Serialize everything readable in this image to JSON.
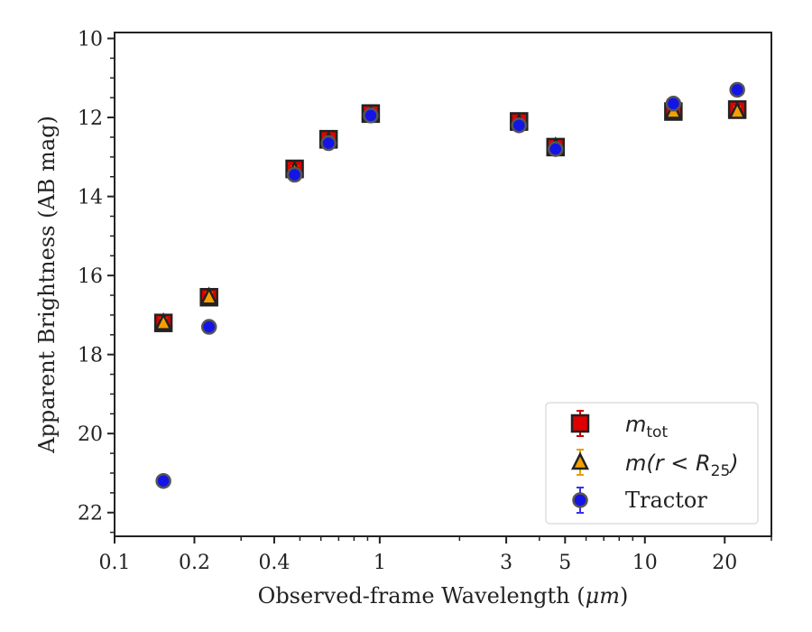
{
  "chart_data": {
    "type": "scatter",
    "xlabel_text": "Observed-frame Wavelength (",
    "xlabel_unit": "μm",
    "xlabel_close": ")",
    "ylabel": "Apparent Brightness (AB mag)",
    "x_scale": "log",
    "y_inverted": true,
    "xlim": [
      0.1,
      30
    ],
    "ylim": [
      22.6,
      9.85
    ],
    "x_ticks": [
      0.1,
      0.2,
      0.4,
      1,
      3,
      5,
      10,
      20
    ],
    "x_tick_labels": [
      "0.1",
      "0.2",
      "0.4",
      "1",
      "3",
      "5",
      "10",
      "20"
    ],
    "y_ticks": [
      10,
      12,
      14,
      16,
      18,
      20,
      22
    ],
    "y_tick_labels": [
      "10",
      "12",
      "14",
      "16",
      "18",
      "20",
      "22"
    ],
    "grid": false,
    "legend_position": "lower-right",
    "series": [
      {
        "name_main": "m",
        "name_sub": "tot",
        "name_tail": "",
        "marker": "square",
        "face_color": "#e00000",
        "edge_color": "#222222",
        "error_color": "#cc0000",
        "x": [
          0.1528,
          0.2271,
          0.4776,
          0.6412,
          0.9247,
          3.3526,
          4.6028,
          12.8075,
          22.3
        ],
        "y": [
          17.2,
          16.55,
          13.3,
          12.55,
          11.9,
          12.1,
          12.75,
          11.85,
          11.8
        ]
      },
      {
        "name_main": "m(r < R",
        "name_sub": "25",
        "name_tail": ")",
        "marker": "triangle",
        "face_color": "#f59f00",
        "edge_color": "#222222",
        "error_color": "#e8a000",
        "x": [
          0.1528,
          0.2271,
          0.4776,
          0.6412,
          0.9247,
          3.3526,
          4.6028,
          12.8075,
          22.3
        ],
        "y": [
          17.2,
          16.55,
          13.35,
          12.6,
          11.95,
          12.15,
          12.75,
          11.85,
          11.85
        ]
      },
      {
        "name_main": "Tractor",
        "name_sub": "",
        "name_tail": "",
        "marker": "circle",
        "face_color": "#1414e6",
        "edge_color": "#555555",
        "error_color": "#3333ee",
        "x": [
          0.1528,
          0.2271,
          0.4776,
          0.6412,
          0.9247,
          3.3526,
          4.6028,
          12.8075,
          22.3
        ],
        "y": [
          21.2,
          17.3,
          13.45,
          12.65,
          11.95,
          12.2,
          12.8,
          11.65,
          11.3
        ]
      }
    ]
  }
}
